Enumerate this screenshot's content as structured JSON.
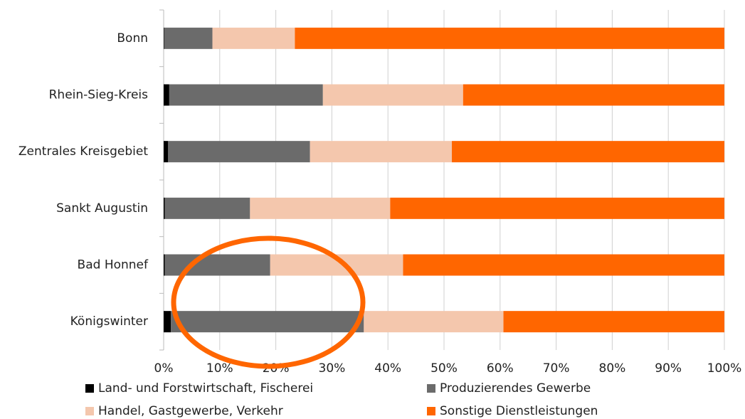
{
  "chart_data": {
    "type": "stacked-bar-horizontal",
    "categories": [
      "Bonn",
      "Rhein-Sieg-Kreis",
      "Zentrales Kreisgebiet",
      "Sankt Augustin",
      "Bad Honnef",
      "Königswinter"
    ],
    "series": [
      {
        "name": "Land- und Forstwirtschaft, Fischerei",
        "color": "#000000",
        "values": [
          0.1,
          1.0,
          0.8,
          0.2,
          0.2,
          1.3
        ]
      },
      {
        "name": "Produzierendes Gewerbe",
        "color": "#6b6b6b",
        "values": [
          8.6,
          27.4,
          25.3,
          15.2,
          18.8,
          34.4
        ]
      },
      {
        "name": "Handel, Gastgewerbe, Verkehr",
        "color": "#f4c7ad",
        "values": [
          14.7,
          25.0,
          25.3,
          25.0,
          23.7,
          24.9
        ]
      },
      {
        "name": "Sonstige Dienstleistungen",
        "color": "#ff6600",
        "values": [
          76.6,
          46.6,
          48.6,
          59.6,
          57.3,
          39.4
        ]
      }
    ],
    "xlim": [
      0,
      100
    ],
    "xticks": [
      {
        "value": 0,
        "label": "0%"
      },
      {
        "value": 10,
        "label": "10%"
      },
      {
        "value": 20,
        "label": "20%"
      },
      {
        "value": 30,
        "label": "30%"
      },
      {
        "value": 40,
        "label": "40%"
      },
      {
        "value": 50,
        "label": "50%"
      },
      {
        "value": 60,
        "label": "60%"
      },
      {
        "value": 70,
        "label": "70%"
      },
      {
        "value": 80,
        "label": "80%"
      },
      {
        "value": 90,
        "label": "90%"
      },
      {
        "value": 100,
        "label": "100%"
      }
    ],
    "grid": true
  }
}
